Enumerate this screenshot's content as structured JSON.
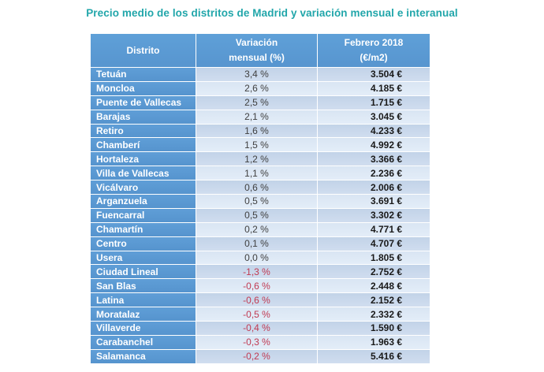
{
  "title": "Precio medio de los distritos de Madrid y variación mensual e interanual",
  "colors": {
    "title_teal": "#21A6AA",
    "header_blue": "#5B9BD5",
    "row_odd_bg": "#C9D8EC",
    "row_even_bg": "#DEE9F5",
    "positive_text": "#404040",
    "negative_text": "#C13A52",
    "price_text": "#1A1A1A"
  },
  "chart_data": {
    "type": "table",
    "title": "Precio medio de los distritos de Madrid y variación mensual e interanual",
    "columns": [
      {
        "key": "district",
        "lines": [
          "Distrito"
        ]
      },
      {
        "key": "variacion_mensual",
        "lines": [
          "Variación",
          "mensual (%)"
        ]
      },
      {
        "key": "febrero_2018",
        "lines": [
          "Febrero 2018",
          "(€/m2)"
        ]
      }
    ],
    "rows": [
      {
        "district": "Tetuán",
        "variacion_mensual": "3,4 %",
        "febrero_2018": "3.504 €"
      },
      {
        "district": "Moncloa",
        "variacion_mensual": "2,6 %",
        "febrero_2018": "4.185 €"
      },
      {
        "district": "Puente de Vallecas",
        "variacion_mensual": "2,5 %",
        "febrero_2018": "1.715 €"
      },
      {
        "district": "Barajas",
        "variacion_mensual": "2,1 %",
        "febrero_2018": "3.045 €"
      },
      {
        "district": "Retiro",
        "variacion_mensual": "1,6 %",
        "febrero_2018": "4.233 €"
      },
      {
        "district": "Chamberí",
        "variacion_mensual": "1,5 %",
        "febrero_2018": "4.992 €"
      },
      {
        "district": "Hortaleza",
        "variacion_mensual": "1,2 %",
        "febrero_2018": "3.366 €"
      },
      {
        "district": "Villa de Vallecas",
        "variacion_mensual": "1,1 %",
        "febrero_2018": "2.236 €"
      },
      {
        "district": "Vicálvaro",
        "variacion_mensual": "0,6 %",
        "febrero_2018": "2.006 €"
      },
      {
        "district": "Arganzuela",
        "variacion_mensual": "0,5 %",
        "febrero_2018": "3.691 €"
      },
      {
        "district": "Fuencarral",
        "variacion_mensual": "0,5 %",
        "febrero_2018": "3.302 €"
      },
      {
        "district": "Chamartín",
        "variacion_mensual": "0,2 %",
        "febrero_2018": "4.771 €"
      },
      {
        "district": "Centro",
        "variacion_mensual": "0,1 %",
        "febrero_2018": "4.707 €"
      },
      {
        "district": "Usera",
        "variacion_mensual": "0,0 %",
        "febrero_2018": "1.805 €"
      },
      {
        "district": "Ciudad Lineal",
        "variacion_mensual": "-1,3 %",
        "febrero_2018": "2.752 €"
      },
      {
        "district": "San Blas",
        "variacion_mensual": "-0,6 %",
        "febrero_2018": "2.448 €"
      },
      {
        "district": "Latina",
        "variacion_mensual": "-0,6 %",
        "febrero_2018": "2.152 €"
      },
      {
        "district": "Moratalaz",
        "variacion_mensual": "-0,5 %",
        "febrero_2018": "2.332 €"
      },
      {
        "district": "Villaverde",
        "variacion_mensual": "-0,4 %",
        "febrero_2018": "1.590 €"
      },
      {
        "district": "Carabanchel",
        "variacion_mensual": "-0,3 %",
        "febrero_2018": "1.963 €"
      },
      {
        "district": "Salamanca",
        "variacion_mensual": "-0,2 %",
        "febrero_2018": "5.416 €"
      }
    ]
  }
}
